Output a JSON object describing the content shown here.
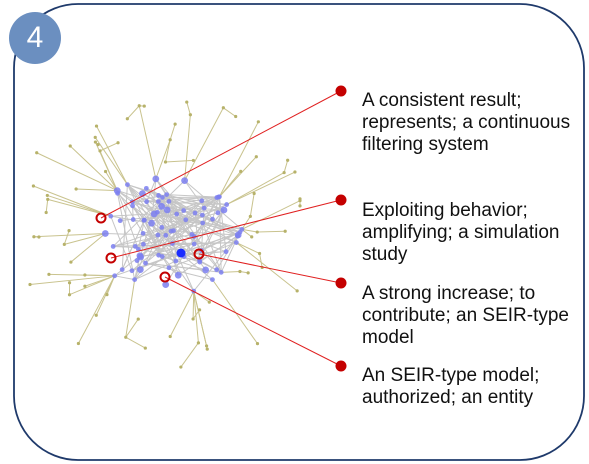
{
  "panel": {
    "badge_label": "4",
    "badge_color": "#6b8fc0",
    "border_color": "#1f3a6b"
  },
  "network": {
    "core_node_color": "#7b7ff0",
    "highlight_node_color": "#1a2cff",
    "periphery_node_color": "#b7b26a",
    "core_edge_color": "#c6c6c6",
    "periphery_edge_color": "#c9c38e"
  },
  "callouts": [
    {
      "text": "A consistent result; represents; a continuous filtering system"
    },
    {
      "text": "Exploiting behavior; amplifying; a simulation study"
    },
    {
      "text": "A strong increase; to contribute; an SEIR-type model"
    },
    {
      "text": "An SEIR-type model; authorized; an entity"
    }
  ],
  "callout_colors": {
    "line": "#e02020",
    "dot": "#c40000",
    "ring": "#c40000"
  }
}
